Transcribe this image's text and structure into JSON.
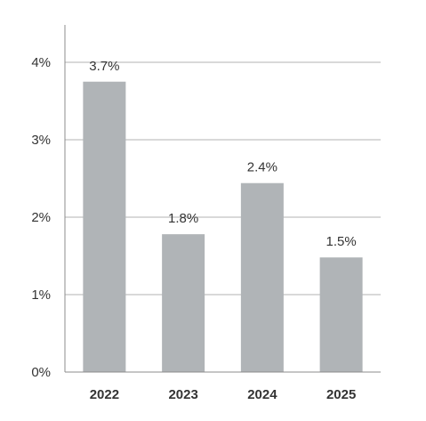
{
  "chart_data": {
    "type": "bar",
    "title": "",
    "xlabel": "",
    "ylabel": "",
    "categories": [
      "2022",
      "2023",
      "2024",
      "2025"
    ],
    "values": [
      3.75,
      1.78,
      2.44,
      1.48
    ],
    "data_labels": [
      "3.7%",
      "1.8%",
      "2.4%",
      "1.5%"
    ],
    "ylim": [
      0,
      4.4
    ],
    "yticks": [
      0,
      1,
      2,
      3,
      4
    ],
    "ytick_labels": [
      "0%",
      "1%",
      "2%",
      "3%",
      "4%"
    ],
    "grid": true,
    "legend": "none",
    "colors": {
      "bar": "#b0b4b7",
      "grid": "#b3b3b3",
      "axis": "#8c8c8c",
      "text": "#333333"
    }
  }
}
